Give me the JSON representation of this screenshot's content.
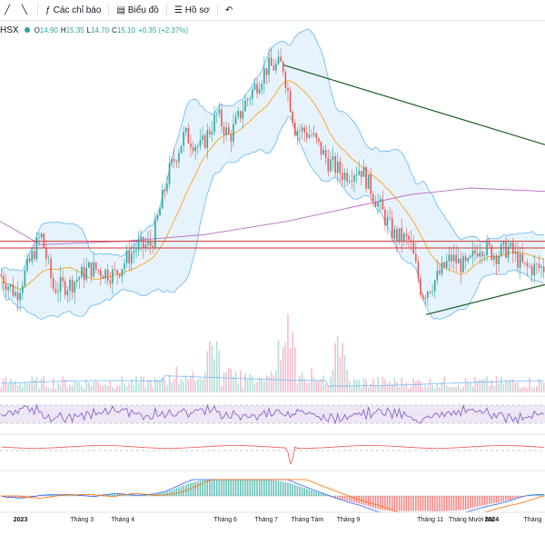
{
  "toolbar": {
    "items": [
      {
        "icon": "draw-line-icon",
        "label": ""
      },
      {
        "icon": "compare-icon",
        "label": ""
      },
      {
        "icon": "indicators-icon",
        "label": "Các chỉ báo"
      },
      {
        "icon": "chart-type-icon",
        "label": "Biểu đồ"
      },
      {
        "icon": "profile-icon",
        "label": "Hồ sơ"
      },
      {
        "icon": "undo-icon",
        "label": ""
      }
    ],
    "glyphs": {
      "draw-line-icon": "╱",
      "compare-icon": "╲",
      "indicators-icon": "ƒ",
      "chart-type-icon": "▤",
      "profile-icon": "☰",
      "undo-icon": "↶"
    }
  },
  "legend": {
    "symbol": "HSX",
    "open": "14.90",
    "high": "15.35",
    "low": "14.70",
    "close": "15.10",
    "change": "+0.35 (+2.37%)",
    "labels": {
      "o": "O",
      "h": "H",
      "l": "L",
      "c": "C"
    }
  },
  "colors": {
    "up": "#26a69a",
    "down": "#ef5350",
    "bb_fill": "#e3f2fd",
    "bb_line": "#64b5f6",
    "ma": "#ff9800",
    "ma_long": "#ba68c8",
    "trend": "#1b5e20",
    "hline": "#d32f2f"
  },
  "chart_data": [
    {
      "type": "candlestick",
      "title": "",
      "x_ticks": [
        "2023",
        "Tháng 3",
        "Tháng 4",
        "Tháng 6",
        "Tháng 7",
        "Tháng Tám",
        "Tháng 9",
        "Tháng 11",
        "Tháng Mười hai",
        "2024",
        "Tháng"
      ],
      "x_tick_positions": [
        0.5,
        2.0,
        3.0,
        5.5,
        6.5,
        7.5,
        8.5,
        10.5,
        11.5,
        12.0,
        13.0
      ],
      "x_range": [
        0,
        13.3
      ],
      "y_range": [
        11.5,
        20.5
      ],
      "price_anchors": [
        {
          "m": 0.0,
          "p": 13.4
        },
        {
          "m": 0.4,
          "p": 12.8
        },
        {
          "m": 1.0,
          "p": 14.6
        },
        {
          "m": 1.3,
          "p": 13.0
        },
        {
          "m": 1.7,
          "p": 13.1
        },
        {
          "m": 2.2,
          "p": 13.6
        },
        {
          "m": 2.8,
          "p": 13.4
        },
        {
          "m": 3.3,
          "p": 14.2
        },
        {
          "m": 3.7,
          "p": 14.3
        },
        {
          "m": 4.1,
          "p": 16.4
        },
        {
          "m": 4.5,
          "p": 17.6
        },
        {
          "m": 4.9,
          "p": 17.2
        },
        {
          "m": 5.3,
          "p": 18.2
        },
        {
          "m": 5.6,
          "p": 17.5
        },
        {
          "m": 6.0,
          "p": 18.6
        },
        {
          "m": 6.5,
          "p": 19.6
        },
        {
          "m": 6.9,
          "p": 19.7
        },
        {
          "m": 7.2,
          "p": 17.8
        },
        {
          "m": 7.6,
          "p": 17.6
        },
        {
          "m": 8.0,
          "p": 16.8
        },
        {
          "m": 8.4,
          "p": 16.4
        },
        {
          "m": 8.8,
          "p": 16.6
        },
        {
          "m": 9.2,
          "p": 15.6
        },
        {
          "m": 9.6,
          "p": 14.6
        },
        {
          "m": 10.0,
          "p": 14.4
        },
        {
          "m": 10.3,
          "p": 12.8
        },
        {
          "m": 10.6,
          "p": 13.2
        },
        {
          "m": 11.0,
          "p": 13.9
        },
        {
          "m": 11.4,
          "p": 13.6
        },
        {
          "m": 11.7,
          "p": 14.3
        },
        {
          "m": 12.1,
          "p": 14.0
        },
        {
          "m": 12.4,
          "p": 14.2
        },
        {
          "m": 12.8,
          "p": 13.6
        },
        {
          "m": 13.3,
          "p": 13.6
        }
      ],
      "horizontal_levels": [
        14.2,
        14.4
      ],
      "trendlines": [
        {
          "from": [
            6.9,
            19.7
          ],
          "to": [
            13.3,
            17.3
          ]
        },
        {
          "from": [
            10.4,
            12.2
          ],
          "to": [
            13.3,
            13.1
          ]
        }
      ],
      "long_ma_anchors": [
        {
          "m": 0.0,
          "p": 15.0
        },
        {
          "m": 1.0,
          "p": 14.3
        },
        {
          "m": 3.0,
          "p": 14.4
        },
        {
          "m": 5.0,
          "p": 14.6
        },
        {
          "m": 7.0,
          "p": 15.0
        },
        {
          "m": 8.5,
          "p": 15.4
        },
        {
          "m": 10.0,
          "p": 15.8
        },
        {
          "m": 11.5,
          "p": 16.0
        },
        {
          "m": 13.3,
          "p": 15.9
        }
      ],
      "candle_count": 230
    },
    {
      "type": "bar",
      "title": "",
      "panel": "volume",
      "bar_count": 230,
      "spikes": [
        5.2,
        6.9,
        7.1,
        8.3
      ]
    },
    {
      "type": "line",
      "title": "",
      "panel": "oscillator",
      "y_range": [
        0,
        100
      ],
      "bands": [
        30,
        70
      ]
    },
    {
      "type": "line",
      "title": "",
      "panel": "momentum"
    },
    {
      "type": "line",
      "title": "",
      "panel": "macd"
    }
  ]
}
